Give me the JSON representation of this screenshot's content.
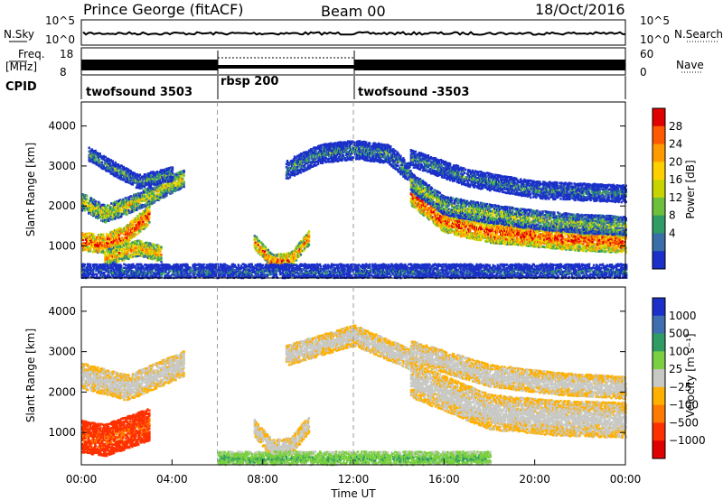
{
  "header": {
    "station": "Prince George (fitACF)",
    "beam": "Beam 00",
    "date": "18/Oct/2016"
  },
  "strip_labels": {
    "nsky": "N.Sky",
    "nsearch": "N.Search",
    "nsky_ticks": [
      "10^5",
      "10^0"
    ],
    "freq_unit_line1": "Freq.",
    "freq_unit_line2": "[MHz]",
    "freq_ticks": [
      "18",
      "8"
    ],
    "nave": "Nave",
    "nave_ticks": [
      "60",
      "0"
    ],
    "cpid": "CPID"
  },
  "cpid_segments": [
    {
      "label": "twofsound 3503",
      "start_hour": 0,
      "end_hour": 6
    },
    {
      "label": "rbsp 200",
      "start_hour": 6,
      "end_hour": 12
    },
    {
      "label": "twofsound -3503",
      "start_hour": 12,
      "end_hour": 24
    }
  ],
  "power_panel": {
    "ylabel": "Slant Range [km]",
    "colorbar_label": "Power [dB]",
    "colorbar_ticks": [
      "28",
      "24",
      "20",
      "16",
      "12",
      "8",
      "4"
    ],
    "colorbar_colors": [
      "#e00000",
      "#ff5a00",
      "#ff9a00",
      "#ffd000",
      "#c8d400",
      "#6cc03c",
      "#2f9c64",
      "#3a6ea8",
      "#1a30c8"
    ]
  },
  "velocity_panel": {
    "ylabel": "Slant Range [km]",
    "colorbar_label": "Velocity [m s⁻¹]",
    "colorbar_ticks": [
      "1000",
      "500",
      "100",
      "25",
      "−25",
      "−100",
      "−500",
      "−1000"
    ],
    "colorbar_colors": [
      "#1a30c8",
      "#3f6fb0",
      "#2f9c64",
      "#7ad040",
      "#c8c8c4",
      "#ffb000",
      "#ff7a00",
      "#ff3000",
      "#e00000"
    ]
  },
  "x_axis": {
    "label": "Time UT",
    "ticks": [
      "00:00",
      "04:00",
      "08:00",
      "12:00",
      "16:00",
      "20:00",
      "00:00"
    ]
  },
  "chart_data": {
    "type": "heatmap",
    "title": "Prince George (fitACF)",
    "subtitle": "Beam 00",
    "date": "18/Oct/2016",
    "xlabel": "Time UT",
    "ylabel": "Slant Range [km]",
    "xlim_hours": [
      0,
      24
    ],
    "ylim_km": [
      200,
      4600
    ],
    "y_ticks_km": [
      1000,
      2000,
      3000,
      4000
    ],
    "vertical_markers_hours": [
      6,
      12
    ],
    "panels": [
      {
        "name": "Power [dB]",
        "bands": [
          {
            "t": [
              0,
              1,
              2,
              3
            ],
            "r": [
              1100,
              1050,
              1300,
              1800
            ],
            "w": 220,
            "v": 26
          },
          {
            "t": [
              0,
              1,
              2,
              3,
              4.5
            ],
            "r": [
              2100,
              1800,
              2000,
              2250,
              2700
            ],
            "w": 200,
            "v": 18
          },
          {
            "t": [
              0.3,
              1.5,
              2.5,
              4
            ],
            "r": [
              3300,
              2900,
              2600,
              2800
            ],
            "w": 160,
            "v": 10
          },
          {
            "t": [
              1,
              2.5,
              3.5
            ],
            "r": [
              700,
              950,
              800
            ],
            "w": 180,
            "v": 22
          },
          {
            "t": [
              7.6,
              8.4,
              9.2,
              10
            ],
            "r": [
              1100,
              600,
              650,
              1200
            ],
            "w": 160,
            "v": 24
          },
          {
            "t": [
              9,
              10.5,
              12,
              13.5,
              14.5
            ],
            "r": [
              2900,
              3300,
              3400,
              3300,
              2800
            ],
            "w": 220,
            "v": 9
          },
          {
            "t": [
              14.5,
              16,
              18,
              20,
              22,
              24
            ],
            "r": [
              2300,
              1600,
              1350,
              1250,
              1150,
              1100
            ],
            "w": 260,
            "v": 26
          },
          {
            "t": [
              14.5,
              16,
              18,
              20,
              22,
              24
            ],
            "r": [
              2600,
              2000,
              1800,
              1650,
              1550,
              1500
            ],
            "w": 220,
            "v": 14
          },
          {
            "t": [
              14.5,
              17,
              20,
              24
            ],
            "r": [
              3200,
              2700,
              2400,
              2300
            ],
            "w": 200,
            "v": 8
          },
          {
            "t": [
              0,
              6,
              12,
              18,
              24
            ],
            "r": [
              350,
              350,
              350,
              350,
              350
            ],
            "w": 180,
            "v": 6
          }
        ]
      },
      {
        "name": "Velocity [m s-1]",
        "bands": [
          {
            "t": [
              0,
              1,
              2,
              3
            ],
            "r": [
              900,
              800,
              1000,
              1200
            ],
            "w": 380,
            "v": -300
          },
          {
            "t": [
              0,
              2,
              4.5
            ],
            "r": [
              2400,
              2100,
              2700
            ],
            "w": 300,
            "v": 0
          },
          {
            "t": [
              7.6,
              8.4,
              9.2,
              10
            ],
            "r": [
              1100,
              600,
              650,
              1200
            ],
            "w": 200,
            "v": 0
          },
          {
            "t": [
              9,
              12,
              14.5
            ],
            "r": [
              2900,
              3400,
              2800
            ],
            "w": 240,
            "v": 0
          },
          {
            "t": [
              14.5,
              18,
              21,
              24
            ],
            "r": [
              2300,
              1500,
              1350,
              1300
            ],
            "w": 420,
            "v": 0
          },
          {
            "t": [
              14.5,
              18,
              21,
              24
            ],
            "r": [
              3000,
              2400,
              2200,
              2100
            ],
            "w": 260,
            "v": 0
          },
          {
            "t": [
              6,
              9,
              12,
              15,
              18
            ],
            "r": [
              350,
              350,
              350,
              350,
              350
            ],
            "w": 160,
            "v": 60
          }
        ]
      }
    ]
  }
}
